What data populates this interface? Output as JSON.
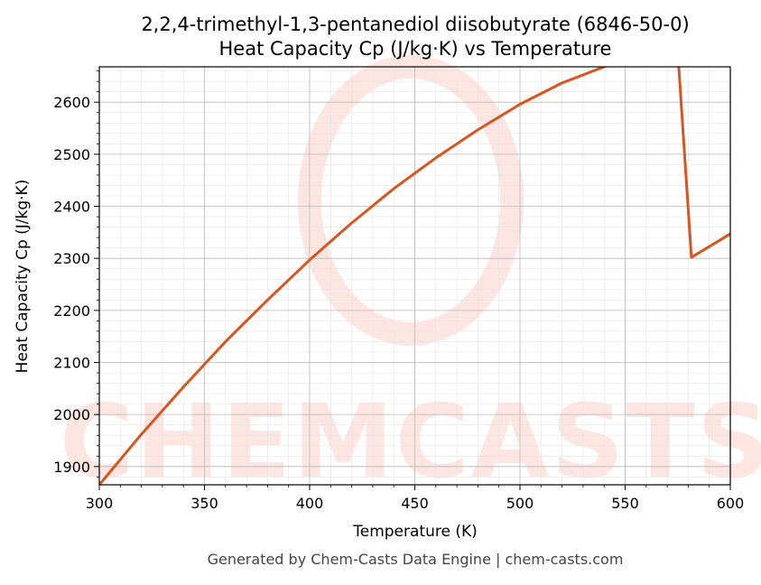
{
  "chart_data": {
    "type": "line",
    "title_line1": "2,2,4-trimethyl-1,3-pentanediol diisobutyrate (6846-50-0)",
    "title_line2": "Heat Capacity Cp (J/kg·K) vs Temperature",
    "xlabel": "Temperature (K)",
    "ylabel": "Heat Capacity Cp (J/kg·K)",
    "xlim": [
      300,
      600
    ],
    "ylim": [
      1865,
      2668
    ],
    "x_ticks": [
      300,
      350,
      400,
      450,
      500,
      550,
      600
    ],
    "y_ticks": [
      1900,
      2000,
      2100,
      2200,
      2300,
      2400,
      2500,
      2600
    ],
    "grid": true,
    "series": [
      {
        "color": "#d9541e",
        "x": [
          300,
          320,
          340,
          360,
          380,
          400,
          420,
          440,
          460,
          480,
          500,
          520,
          540,
          560,
          575.5,
          581.5,
          600
        ],
        "y": [
          1865,
          1962,
          2053,
          2140,
          2220,
          2297,
          2368,
          2434,
          2493,
          2547,
          2596,
          2637,
          2668,
          2695,
          2668,
          2302,
          2347
        ]
      }
    ],
    "watermark": "CHEMCASTS"
  },
  "footer": "Generated by Chem-Casts Data Engine | chem-casts.com"
}
